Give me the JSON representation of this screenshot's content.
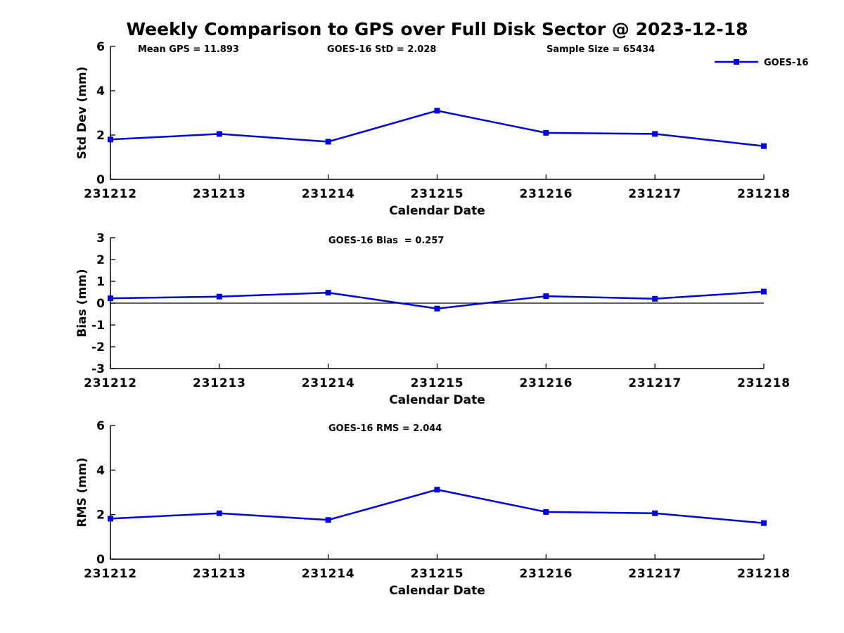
{
  "figure": {
    "title": "Weekly Comparison to GPS over Full Disk Sector @ 2023-12-18",
    "background": "#ffffff",
    "text_color": "#000000",
    "accent_color": "#0000dd"
  },
  "chart_data": [
    {
      "type": "line",
      "x": [
        "231212",
        "231213",
        "231214",
        "231215",
        "231216",
        "231217",
        "231218"
      ],
      "series": [
        {
          "name": "GOES-16",
          "color": "#0000dd",
          "marker": "square",
          "values": [
            1.8,
            2.05,
            1.7,
            3.1,
            2.1,
            2.05,
            1.5
          ]
        }
      ],
      "xlabel": "Calendar Date",
      "ylabel": "Std Dev (mm)",
      "ylim": [
        0,
        6
      ],
      "yticks": [
        0,
        2,
        4,
        6
      ],
      "annotations": [
        "Mean GPS = 11.893",
        "GOES-16 StD = 2.028",
        "Sample Size = 65434"
      ],
      "legend": {
        "label": "GOES-16",
        "position": "top-right"
      },
      "grid": false,
      "zero_line": false
    },
    {
      "type": "line",
      "x": [
        "231212",
        "231213",
        "231214",
        "231215",
        "231216",
        "231217",
        "231218"
      ],
      "series": [
        {
          "name": "GOES-16",
          "color": "#0000dd",
          "marker": "square",
          "values": [
            0.22,
            0.3,
            0.48,
            -0.25,
            0.32,
            0.2,
            0.53
          ]
        }
      ],
      "xlabel": "Calendar Date",
      "ylabel": "Bias (mm)",
      "ylim": [
        -3,
        3
      ],
      "yticks": [
        3,
        2,
        1,
        0,
        -1,
        -2,
        -3
      ],
      "annotations": [
        "GOES-16 Bias  = 0.257"
      ],
      "legend": null,
      "grid": false,
      "zero_line": true
    },
    {
      "type": "line",
      "x": [
        "231212",
        "231213",
        "231214",
        "231215",
        "231216",
        "231217",
        "231218"
      ],
      "series": [
        {
          "name": "GOES-16",
          "color": "#0000dd",
          "marker": "square",
          "values": [
            1.82,
            2.06,
            1.76,
            3.12,
            2.12,
            2.06,
            1.62
          ]
        }
      ],
      "xlabel": "Calendar Date",
      "ylabel": "RMS (mm)",
      "ylim": [
        0,
        6
      ],
      "yticks": [
        0,
        2,
        4,
        6
      ],
      "annotations": [
        "GOES-16 RMS = 2.044"
      ],
      "legend": null,
      "grid": false,
      "zero_line": false
    }
  ]
}
